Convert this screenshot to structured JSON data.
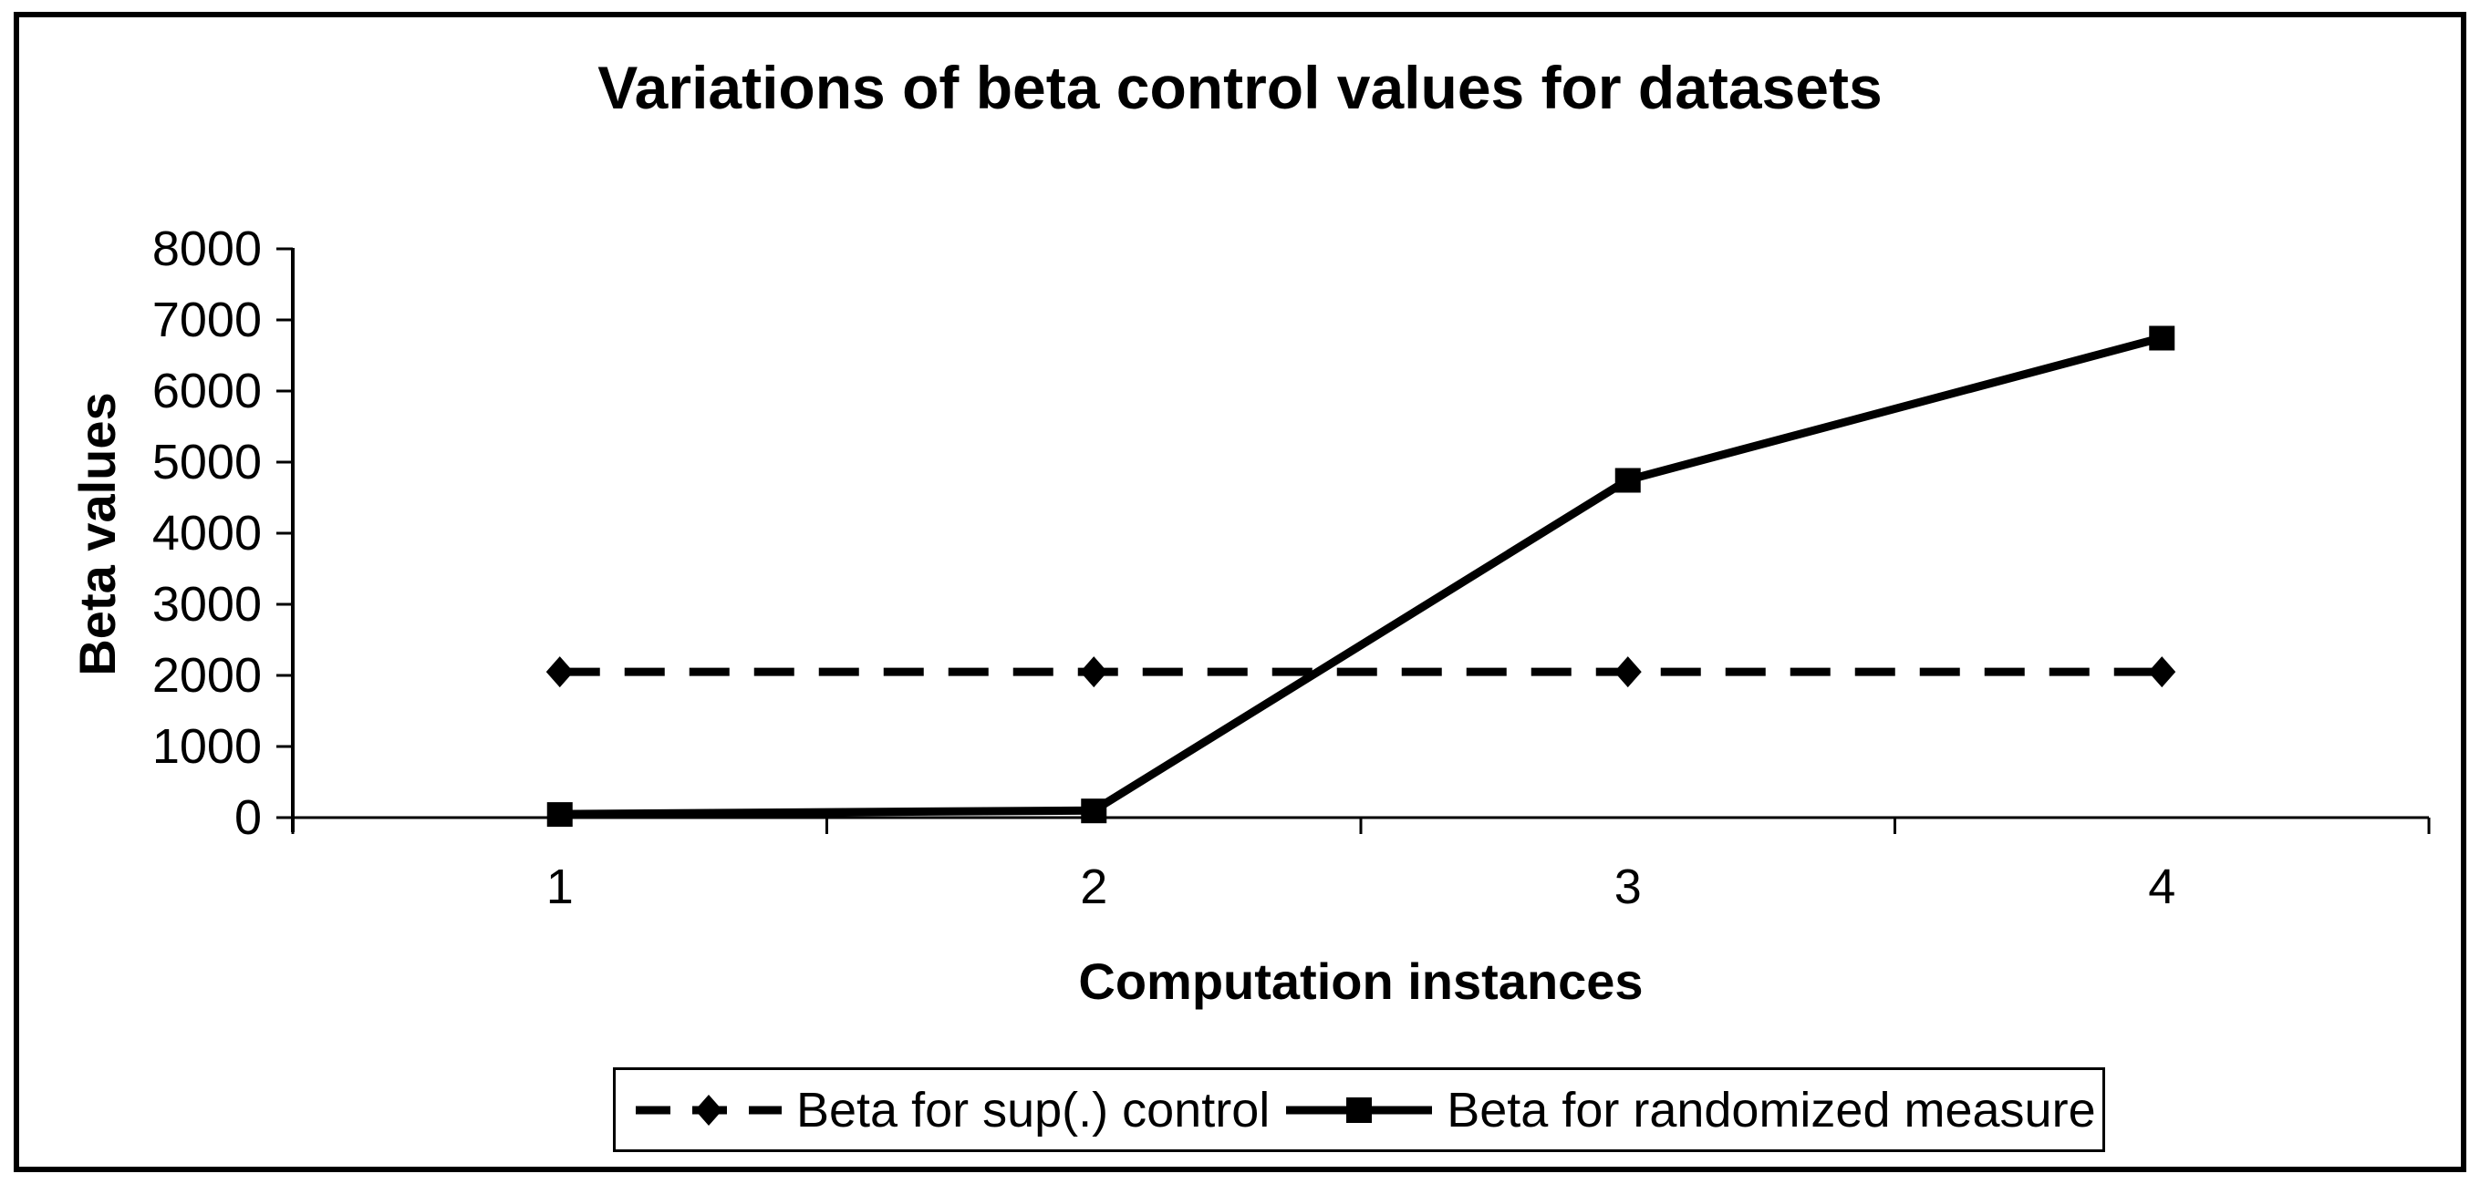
{
  "title": "Variations of beta control values for datasets",
  "chart_data": {
    "type": "line",
    "title": "Variations of beta control values for datasets",
    "xlabel": "Computation instances",
    "ylabel": "Beta values",
    "categories": [
      "1",
      "2",
      "3",
      "4"
    ],
    "series": [
      {
        "name": "Beta for sup(.) control",
        "values": [
          2050,
          2050,
          2050,
          2050
        ],
        "line_style": "dashed",
        "marker": "diamond",
        "color": "#000000"
      },
      {
        "name": "Beta for randomized measure",
        "values": [
          50,
          100,
          4750,
          6750
        ],
        "line_style": "solid",
        "marker": "square",
        "color": "#000000"
      }
    ],
    "ylim": [
      0,
      8000
    ],
    "ytick_step": 1000,
    "yticks": [
      "0",
      "1000",
      "2000",
      "3000",
      "4000",
      "5000",
      "6000",
      "7000",
      "8000"
    ],
    "grid": false,
    "legend_position": "bottom"
  },
  "legend": {
    "entries": [
      {
        "label": "Beta for sup(.) control",
        "marker": "diamond-marker",
        "line": "dashed"
      },
      {
        "label": "Beta for randomized measure",
        "marker": "square-marker",
        "line": "solid"
      }
    ]
  },
  "colors": {
    "foreground": "#000000",
    "background": "#ffffff"
  }
}
